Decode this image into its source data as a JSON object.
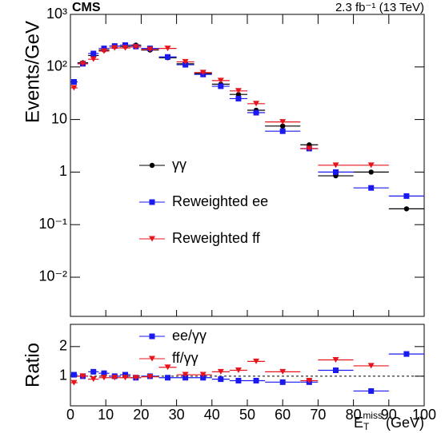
{
  "chart_data": [
    {
      "type": "scatter",
      "experiment": "CMS",
      "lumi_label": "2.3 fb⁻¹ (13 TeV)",
      "y_label": "Events/GeV",
      "log_y": true,
      "ylim": [
        0.0018,
        1000
      ],
      "yticks": [
        {
          "value": 1000,
          "label": "10³"
        },
        {
          "value": 100,
          "label": "10²"
        },
        10,
        1,
        {
          "value": 0.1,
          "label": "10⁻¹"
        },
        {
          "value": 0.01,
          "label": "10⁻²"
        }
      ],
      "xlim": [
        0,
        100
      ],
      "x": [
        1,
        3.5,
        6.5,
        9.5,
        12.5,
        15.5,
        18.5,
        22.5,
        27.5,
        32.5,
        37.5,
        42.5,
        47.5,
        52.5,
        60,
        67.5,
        75,
        85,
        95
      ],
      "xerr": [
        1,
        1.5,
        1.5,
        1.5,
        1.5,
        1.5,
        1.5,
        2.5,
        2.5,
        2.5,
        2.5,
        2.5,
        2.5,
        2.5,
        5,
        2.5,
        5,
        5,
        5
      ],
      "series": [
        {
          "name": "γγ",
          "color": "#000000",
          "marker": "circle",
          "values": [
            52,
            120,
            165,
            210,
            250,
            245,
            260,
            210,
            150,
            115,
            75,
            47,
            30,
            15,
            7.5,
            3.3,
            0.85,
            1.0,
            0.2
          ]
        },
        {
          "name": "Reweighted ee",
          "color": "#1a1af0",
          "marker": "square",
          "values": [
            52,
            115,
            180,
            225,
            250,
            260,
            245,
            225,
            155,
            110,
            72,
            43,
            25,
            13.5,
            6,
            2.8,
            1.0,
            0.5,
            0.35
          ]
        },
        {
          "name": "Reweighted ff",
          "color": "#e8141c",
          "marker": "triangle-down",
          "values": [
            40,
            115,
            140,
            200,
            230,
            230,
            240,
            215,
            225,
            125,
            78,
            55,
            35,
            20,
            9,
            2.8,
            1.35,
            1.35,
            null
          ]
        }
      ]
    },
    {
      "type": "scatter",
      "y_label": "Ratio",
      "log_y": false,
      "ylim": [
        0,
        2.75
      ],
      "yticks": [
        1,
        2
      ],
      "reference_line": 1,
      "x_label": {
        "symbol": "E",
        "sub": "T",
        "sup": "miss",
        "unit": "(GeV)"
      },
      "xlim": [
        0,
        100
      ],
      "xticks": [
        0,
        10,
        20,
        30,
        40,
        50,
        60,
        70,
        80,
        90,
        100
      ],
      "x": [
        1,
        3.5,
        6.5,
        9.5,
        12.5,
        15.5,
        18.5,
        22.5,
        27.5,
        32.5,
        37.5,
        42.5,
        47.5,
        52.5,
        60,
        67.5,
        75,
        85,
        95
      ],
      "xerr": [
        1,
        1.5,
        1.5,
        1.5,
        1.5,
        1.5,
        1.5,
        2.5,
        2.5,
        2.5,
        2.5,
        2.5,
        2.5,
        2.5,
        5,
        2.5,
        5,
        5,
        5
      ],
      "series": [
        {
          "name": "ee/γγ",
          "color": "#1a1af0",
          "marker": "square",
          "values": [
            1.05,
            1.0,
            1.15,
            1.1,
            1.0,
            1.05,
            0.95,
            1.0,
            0.95,
            0.95,
            0.95,
            0.9,
            0.85,
            0.85,
            0.8,
            0.8,
            1.2,
            0.5,
            1.75
          ]
        },
        {
          "name": "ff/γγ",
          "color": "#e8141c",
          "marker": "triangle-down",
          "values": [
            0.78,
            1.0,
            0.9,
            0.95,
            0.95,
            0.95,
            0.95,
            0.98,
            1.3,
            1.05,
            1.05,
            1.15,
            1.2,
            1.5,
            1.15,
            0.85,
            1.55,
            1.35,
            null
          ]
        }
      ]
    }
  ]
}
